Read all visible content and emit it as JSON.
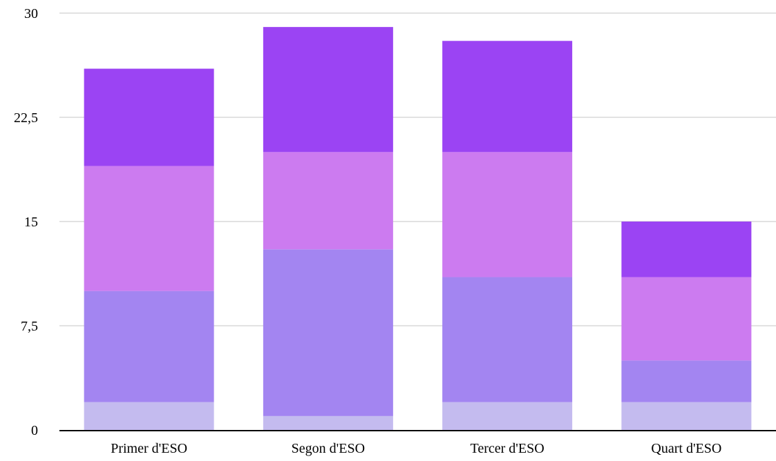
{
  "chart_data": {
    "type": "bar",
    "stacked": true,
    "title": "",
    "xlabel": "",
    "ylabel": "",
    "categories": [
      "Primer d'ESO",
      "Segon d'ESO",
      "Tercer d'ESO",
      "Quart d'ESO"
    ],
    "series": [
      {
        "values": [
          2,
          1,
          2,
          2
        ],
        "color": "#c4bbef"
      },
      {
        "values": [
          8,
          12,
          9,
          3
        ],
        "color": "#a385f1"
      },
      {
        "values": [
          9,
          7,
          9,
          6
        ],
        "color": "#cc7bf0"
      },
      {
        "values": [
          7,
          9,
          8,
          4
        ],
        "color": "#9b44f3"
      }
    ],
    "ylim": [
      0,
      30
    ],
    "yticks": [
      0,
      7.5,
      15,
      22.5,
      30
    ],
    "ytick_labels": [
      "0",
      "7,5",
      "15",
      "22,5",
      "30"
    ],
    "grid": true,
    "legend": "none"
  }
}
